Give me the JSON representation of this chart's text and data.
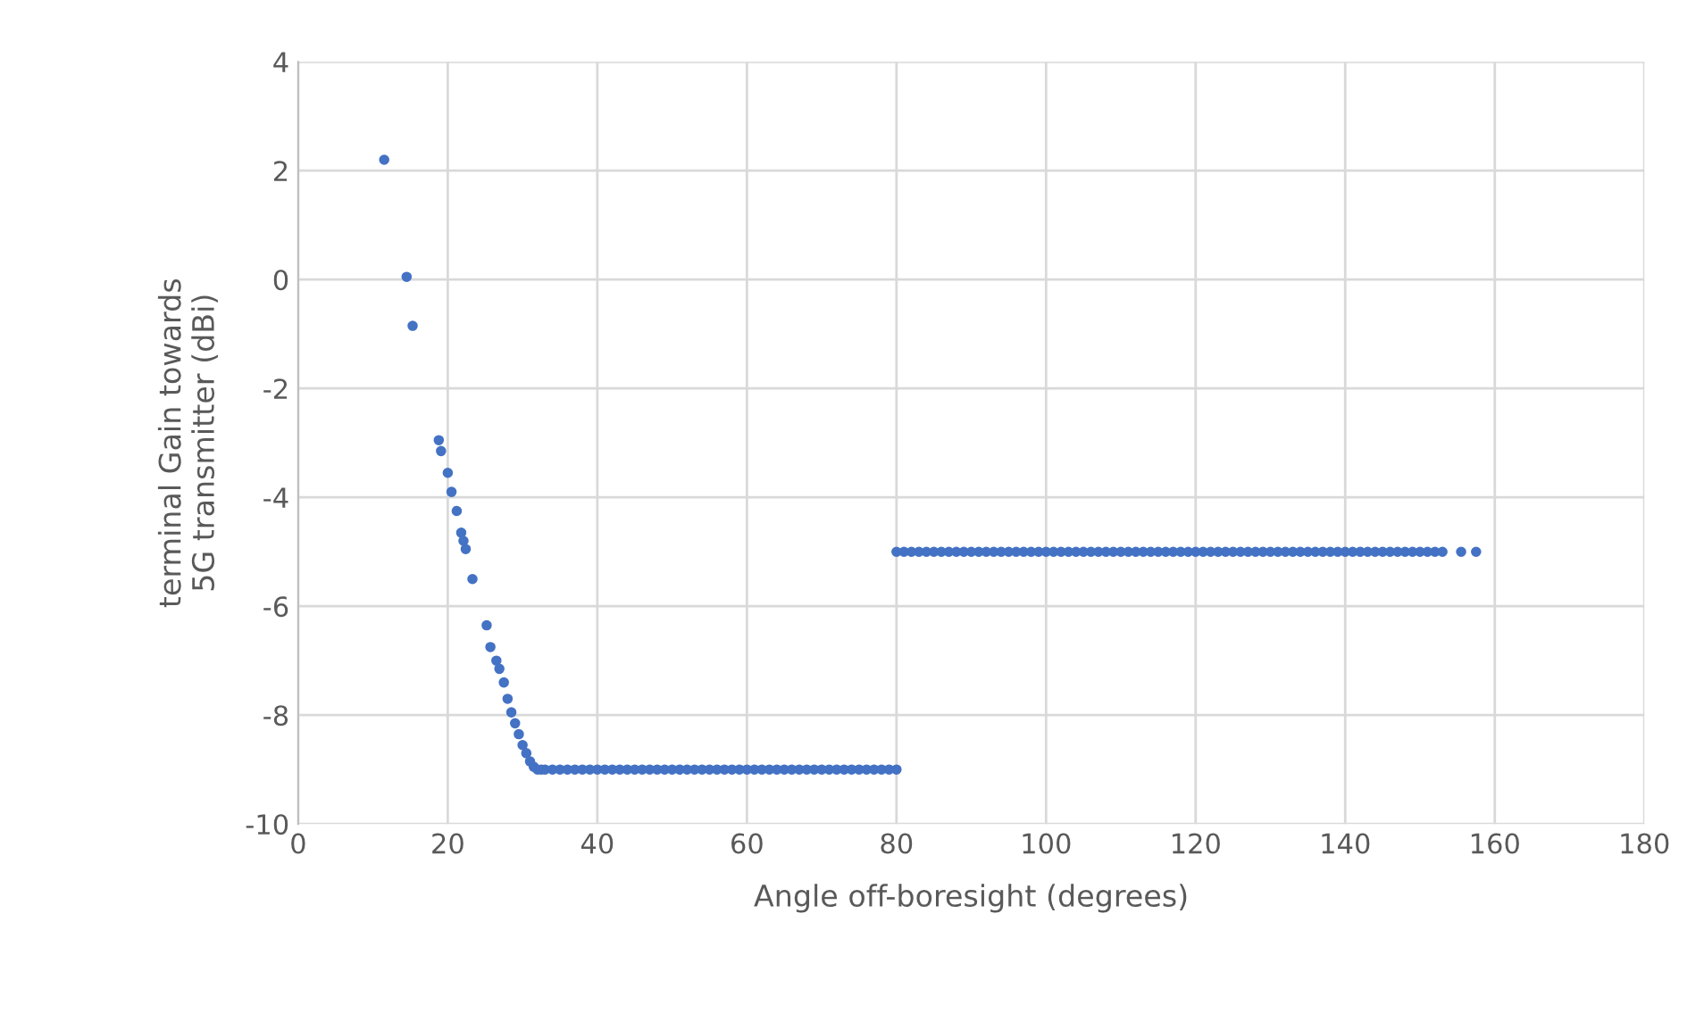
{
  "chart_data": {
    "type": "scatter",
    "xlabel": "Angle off-boresight (degrees)",
    "ylabel": "terminal Gain towards\n5G transmitter (dBi)",
    "xlim": [
      0,
      180
    ],
    "ylim": [
      -10,
      4
    ],
    "xticks": [
      0,
      20,
      40,
      60,
      80,
      100,
      120,
      140,
      160,
      180
    ],
    "yticks": [
      -10,
      -8,
      -6,
      -4,
      -2,
      0,
      2,
      4
    ],
    "grid": true,
    "marker": "circle",
    "legend": false,
    "series": [
      {
        "color": "#4472c4",
        "x": [
          11.5,
          14.5,
          15.3,
          18.8,
          19.1,
          20,
          20.5,
          21.2,
          21.8,
          22.1,
          22.4,
          23.3,
          25.2,
          25.7,
          26.5,
          26.9,
          27.5,
          28,
          28.5,
          29,
          29.5,
          30,
          30.5,
          31,
          31.5,
          32,
          32.5,
          33,
          34,
          35,
          36,
          37,
          38,
          39,
          40,
          41,
          42,
          43,
          44,
          45,
          46,
          47,
          48,
          49,
          50,
          51,
          52,
          53,
          54,
          55,
          56,
          57,
          58,
          59,
          60,
          61,
          62,
          63,
          64,
          65,
          66,
          67,
          68,
          69,
          70,
          71,
          72,
          73,
          74,
          75,
          76,
          77,
          78,
          79,
          80,
          80,
          81,
          82,
          83,
          84,
          85,
          86,
          87,
          88,
          89,
          90,
          91,
          92,
          93,
          94,
          95,
          96,
          97,
          98,
          99,
          100,
          101,
          102,
          103,
          104,
          105,
          106,
          107,
          108,
          109,
          110,
          111,
          112,
          113,
          114,
          115,
          116,
          117,
          118,
          119,
          120,
          121,
          122,
          123,
          124,
          125,
          126,
          127,
          128,
          129,
          130,
          131,
          132,
          133,
          134,
          135,
          136,
          137,
          138,
          139,
          140,
          141,
          142,
          143,
          144,
          145,
          146,
          147,
          148,
          149,
          150,
          151,
          152,
          153,
          155.5,
          157.5
        ],
        "values": [
          2.2,
          0.05,
          -0.85,
          -2.95,
          -3.15,
          -3.55,
          -3.9,
          -4.25,
          -4.65,
          -4.8,
          -4.95,
          -5.5,
          -6.35,
          -6.75,
          -7.0,
          -7.15,
          -7.4,
          -7.7,
          -7.95,
          -8.15,
          -8.35,
          -8.55,
          -8.7,
          -8.85,
          -8.95,
          -9,
          -9,
          -9,
          -9,
          -9,
          -9,
          -9,
          -9,
          -9,
          -9,
          -9,
          -9,
          -9,
          -9,
          -9,
          -9,
          -9,
          -9,
          -9,
          -9,
          -9,
          -9,
          -9,
          -9,
          -9,
          -9,
          -9,
          -9,
          -9,
          -9,
          -9,
          -9,
          -9,
          -9,
          -9,
          -9,
          -9,
          -9,
          -9,
          -9,
          -9,
          -9,
          -9,
          -9,
          -9,
          -9,
          -9,
          -9,
          -9,
          -9,
          -5,
          -5,
          -5,
          -5,
          -5,
          -5,
          -5,
          -5,
          -5,
          -5,
          -5,
          -5,
          -5,
          -5,
          -5,
          -5,
          -5,
          -5,
          -5,
          -5,
          -5,
          -5,
          -5,
          -5,
          -5,
          -5,
          -5,
          -5,
          -5,
          -5,
          -5,
          -5,
          -5,
          -5,
          -5,
          -5,
          -5,
          -5,
          -5,
          -5,
          -5,
          -5,
          -5,
          -5,
          -5,
          -5,
          -5,
          -5,
          -5,
          -5,
          -5,
          -5,
          -5,
          -5,
          -5,
          -5,
          -5,
          -5,
          -5,
          -5,
          -5,
          -5,
          -5,
          -5,
          -5,
          -5,
          -5,
          -5,
          -5,
          -5,
          -5,
          -5,
          -5,
          -5,
          -5,
          -5
        ]
      }
    ]
  }
}
